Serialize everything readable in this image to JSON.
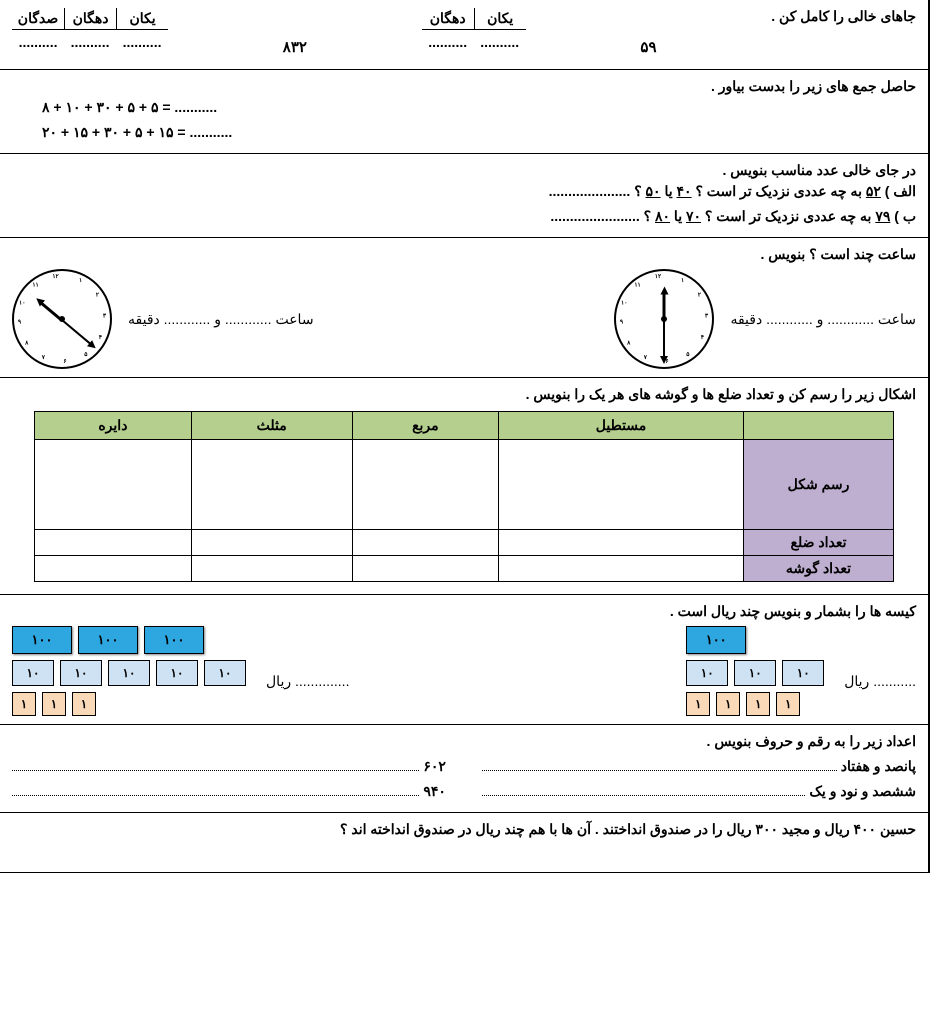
{
  "sec1": {
    "prompt": "جاهای خالی را کامل کن .",
    "num1": "۵۹",
    "num2": "۸۳۲",
    "pv2_headers": [
      "یکان",
      "دهگان"
    ],
    "pv3_headers": [
      "یکان",
      "دهگان",
      "صدگان"
    ]
  },
  "sec2": {
    "prompt": "حاصل جمع های زیر را بدست بیاور .",
    "l1": "۸ + ۱۰ + ۳۰ + ۵ + ۵  =  ...........",
    "l2": "۲۰ + ۱۵ + ۳۰ + ۵ + ۱۵  =  ..........."
  },
  "sec3": {
    "prompt": "در جای خالی عدد مناسب بنویس .",
    "a_pre": "الف ) ",
    "a_num": "۵۲",
    "a_mid": " به چه عددی نزدیک تر است ؟  ",
    "a_opt1": "۴۰",
    "a_or": " یا ",
    "a_opt2": "۵۰",
    "a_q": " ؟  .....................",
    "b_pre": "ب ) ",
    "b_num": "۷۹",
    "b_mid": " به چه عددی نزدیک تر است ؟ ",
    "b_opt1": "۷۰",
    "b_opt2": "۸۰",
    "b_q": " ؟  ......................."
  },
  "sec4": {
    "prompt": "ساعت چند است ؟ بنویس .",
    "label_h": "ساعت",
    "label_and": "و",
    "label_m": "دقیقه",
    "clock1": {
      "hour_angle": 0,
      "minute_angle": 180
    },
    "clock2": {
      "hour_angle": -50,
      "minute_angle": 130
    },
    "ticks": [
      "۱۲",
      "۱",
      "۲",
      "۳",
      "۴",
      "۵",
      "۶",
      "۷",
      "۸",
      "۹",
      "۱۰",
      "۱۱"
    ]
  },
  "sec5": {
    "prompt": "اشکال زیر را رسم کن و تعداد ضلع ها و گوشه های هر یک را بنویس .",
    "cols": [
      "مستطیل",
      "مربع",
      "مثلث",
      "دایره"
    ],
    "rows": [
      "رسم شکل",
      "تعداد ضلع",
      "تعداد گوشه"
    ]
  },
  "sec6": {
    "prompt": "کیسه ها را بشمار و بنویس چند ریال است .",
    "rial": "ریال",
    "v100": "۱۰۰",
    "v10": "۱۰",
    "v1": "۱",
    "g1": {
      "h": 1,
      "t": 3,
      "o": 4
    },
    "g2": {
      "h": 3,
      "t": 5,
      "o": 3
    }
  },
  "sec7": {
    "prompt": "اعداد زیر را به رقم و حروف بنویس .",
    "w1": "پانصد و هفتاد",
    "w2": "ششصد و نود و یک",
    "n1": "۶۰۲",
    "n2": "۹۴۰"
  },
  "sec8": {
    "prompt": "حسین ۴۰۰ ریال و مجید ۳۰۰ ریال را در صندوق انداختند . آن ها با هم چند ریال در صندوق انداخته اند ؟"
  }
}
